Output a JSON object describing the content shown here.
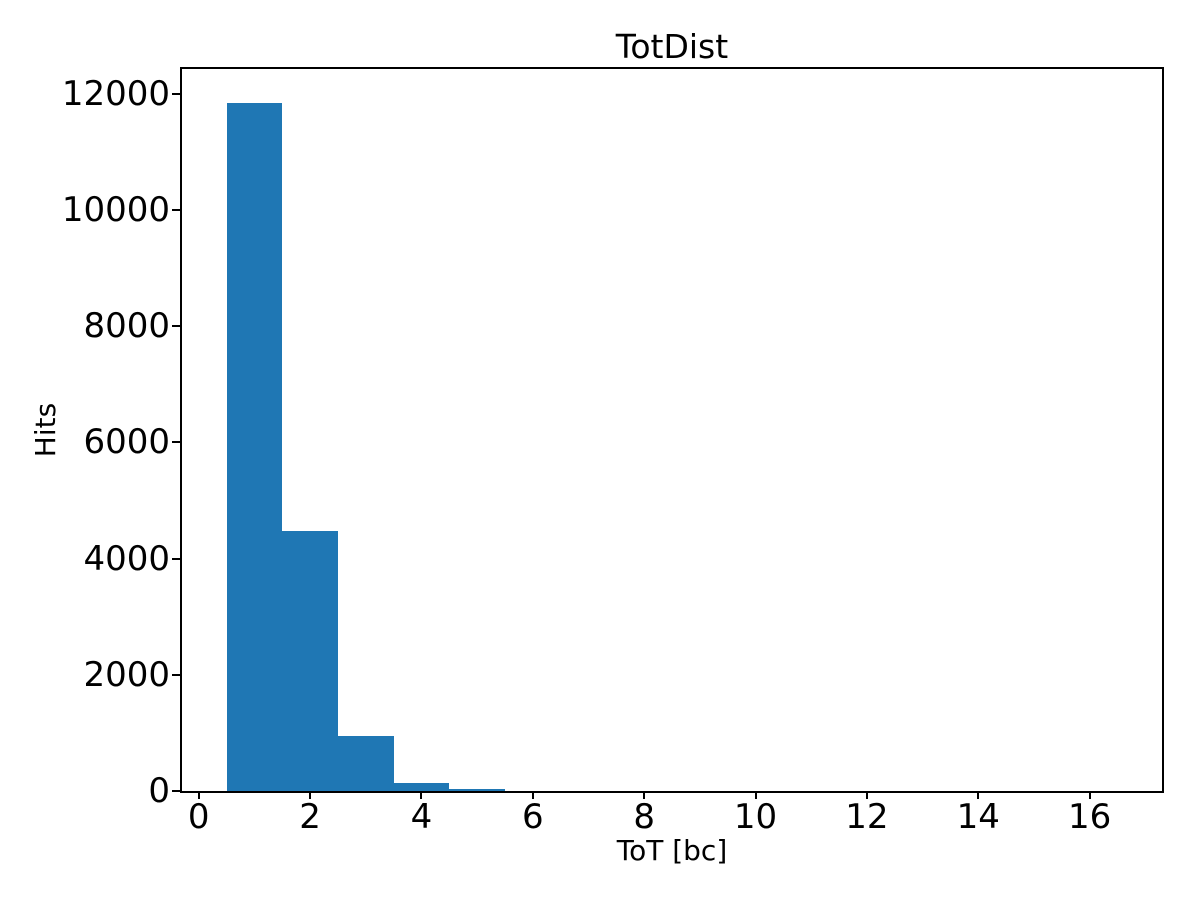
{
  "chart_data": {
    "type": "bar",
    "subtype": "histogram",
    "title": "TotDist",
    "xlabel": "ToT [bc]",
    "ylabel": "Hits",
    "bar_color": "#1f77b4",
    "background_color": "#ffffff",
    "bin_edges": [
      0.5,
      1.5,
      2.5,
      3.5,
      4.5,
      5.5
    ],
    "bin_centers": [
      1,
      2,
      3,
      4,
      5
    ],
    "values": [
      11845,
      4480,
      950,
      140,
      35
    ],
    "xticks": [
      0,
      2,
      4,
      6,
      8,
      10,
      12,
      14,
      16
    ],
    "yticks": [
      0,
      2000,
      4000,
      6000,
      8000,
      10000,
      12000
    ],
    "xlim": [
      -0.3,
      17.3
    ],
    "ylim": [
      0,
      12430
    ],
    "grid": false,
    "legend": false
  }
}
